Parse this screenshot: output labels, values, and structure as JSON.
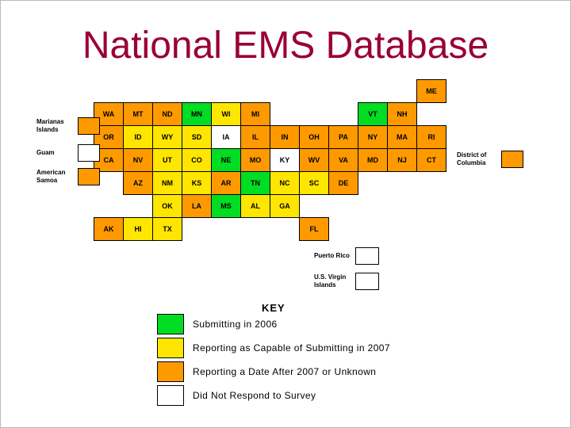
{
  "title": "National EMS Database",
  "colors": {
    "title": "#990033",
    "green": "#00dd22",
    "yellow": "#ffe600",
    "orange": "#ff9900",
    "white": "#ffffff"
  },
  "key": {
    "heading": "KEY"
  },
  "territories": {
    "marianas": {
      "label": "Marianas Islands",
      "color": "orange"
    },
    "guam": {
      "label": "Guam",
      "color": "white"
    },
    "american_samoa": {
      "label": "American Samoa",
      "color": "orange"
    },
    "dc": {
      "label": "District of Columbia",
      "color": "orange"
    },
    "puerto_rico": {
      "label": "Puerto Rico",
      "color": "white"
    },
    "usvi": {
      "label": "U.S. Virgin Islands",
      "color": "white"
    }
  },
  "chart_data": {
    "type": "heatmap",
    "subtype": "us-choropleth-tile-map",
    "title": "National EMS Database",
    "legend_position": "bottom",
    "legend": [
      {
        "status": "submitting_2006",
        "color_key": "green",
        "label": "Submitting in 2006"
      },
      {
        "status": "capable_2007",
        "color_key": "yellow",
        "label": "Reporting as Capable of Submitting in 2007"
      },
      {
        "status": "after_2007",
        "color_key": "orange",
        "label": "Reporting a Date After 2007 or Unknown"
      },
      {
        "status": "no_response",
        "color_key": "white",
        "label": "Did Not Respond to Survey"
      }
    ],
    "status_color_key": {
      "submitting_2006": "green",
      "capable_2007": "yellow",
      "after_2007": "orange",
      "no_response": "white"
    },
    "states": [
      {
        "abbr": "ME",
        "status": "after_2007",
        "col": 11,
        "row": 0
      },
      {
        "abbr": "WA",
        "status": "after_2007",
        "col": 0,
        "row": 1
      },
      {
        "abbr": "MT",
        "status": "after_2007",
        "col": 1,
        "row": 1
      },
      {
        "abbr": "ND",
        "status": "after_2007",
        "col": 2,
        "row": 1
      },
      {
        "abbr": "MN",
        "status": "submitting_2006",
        "col": 3,
        "row": 1
      },
      {
        "abbr": "WI",
        "status": "capable_2007",
        "col": 4,
        "row": 1
      },
      {
        "abbr": "MI",
        "status": "after_2007",
        "col": 5,
        "row": 1
      },
      {
        "abbr": "VT",
        "status": "submitting_2006",
        "col": 9,
        "row": 1
      },
      {
        "abbr": "NH",
        "status": "after_2007",
        "col": 10,
        "row": 1
      },
      {
        "abbr": "OR",
        "status": "after_2007",
        "col": 0,
        "row": 2
      },
      {
        "abbr": "ID",
        "status": "capable_2007",
        "col": 1,
        "row": 2
      },
      {
        "abbr": "WY",
        "status": "capable_2007",
        "col": 2,
        "row": 2
      },
      {
        "abbr": "SD",
        "status": "capable_2007",
        "col": 3,
        "row": 2
      },
      {
        "abbr": "IA",
        "status": "no_response",
        "col": 4,
        "row": 2
      },
      {
        "abbr": "IL",
        "status": "after_2007",
        "col": 5,
        "row": 2
      },
      {
        "abbr": "IN",
        "status": "after_2007",
        "col": 6,
        "row": 2
      },
      {
        "abbr": "OH",
        "status": "after_2007",
        "col": 7,
        "row": 2
      },
      {
        "abbr": "PA",
        "status": "after_2007",
        "col": 8,
        "row": 2
      },
      {
        "abbr": "NY",
        "status": "after_2007",
        "col": 9,
        "row": 2
      },
      {
        "abbr": "MA",
        "status": "after_2007",
        "col": 10,
        "row": 2
      },
      {
        "abbr": "RI",
        "status": "after_2007",
        "col": 11,
        "row": 2
      },
      {
        "abbr": "CA",
        "status": "after_2007",
        "col": 0,
        "row": 3
      },
      {
        "abbr": "NV",
        "status": "after_2007",
        "col": 1,
        "row": 3
      },
      {
        "abbr": "UT",
        "status": "capable_2007",
        "col": 2,
        "row": 3
      },
      {
        "abbr": "CO",
        "status": "capable_2007",
        "col": 3,
        "row": 3
      },
      {
        "abbr": "NE",
        "status": "submitting_2006",
        "col": 4,
        "row": 3
      },
      {
        "abbr": "MO",
        "status": "after_2007",
        "col": 5,
        "row": 3
      },
      {
        "abbr": "KY",
        "status": "no_response",
        "col": 6,
        "row": 3
      },
      {
        "abbr": "WV",
        "status": "after_2007",
        "col": 7,
        "row": 3
      },
      {
        "abbr": "VA",
        "status": "after_2007",
        "col": 8,
        "row": 3
      },
      {
        "abbr": "MD",
        "status": "after_2007",
        "col": 9,
        "row": 3
      },
      {
        "abbr": "NJ",
        "status": "after_2007",
        "col": 10,
        "row": 3
      },
      {
        "abbr": "CT",
        "status": "after_2007",
        "col": 11,
        "row": 3
      },
      {
        "abbr": "AZ",
        "status": "after_2007",
        "col": 1,
        "row": 4
      },
      {
        "abbr": "NM",
        "status": "capable_2007",
        "col": 2,
        "row": 4
      },
      {
        "abbr": "KS",
        "status": "capable_2007",
        "col": 3,
        "row": 4
      },
      {
        "abbr": "AR",
        "status": "after_2007",
        "col": 4,
        "row": 4
      },
      {
        "abbr": "TN",
        "status": "submitting_2006",
        "col": 5,
        "row": 4
      },
      {
        "abbr": "NC",
        "status": "capable_2007",
        "col": 6,
        "row": 4
      },
      {
        "abbr": "SC",
        "status": "capable_2007",
        "col": 7,
        "row": 4
      },
      {
        "abbr": "DE",
        "status": "after_2007",
        "col": 8,
        "row": 4
      },
      {
        "abbr": "OK",
        "status": "capable_2007",
        "col": 2,
        "row": 5
      },
      {
        "abbr": "LA",
        "status": "after_2007",
        "col": 3,
        "row": 5
      },
      {
        "abbr": "MS",
        "status": "submitting_2006",
        "col": 4,
        "row": 5
      },
      {
        "abbr": "AL",
        "status": "capable_2007",
        "col": 5,
        "row": 5
      },
      {
        "abbr": "GA",
        "status": "capable_2007",
        "col": 6,
        "row": 5
      },
      {
        "abbr": "AK",
        "status": "after_2007",
        "col": 0,
        "row": 6
      },
      {
        "abbr": "HI",
        "status": "capable_2007",
        "col": 1,
        "row": 6
      },
      {
        "abbr": "TX",
        "status": "capable_2007",
        "col": 2,
        "row": 6
      },
      {
        "abbr": "FL",
        "status": "after_2007",
        "col": 7,
        "row": 6
      }
    ]
  }
}
